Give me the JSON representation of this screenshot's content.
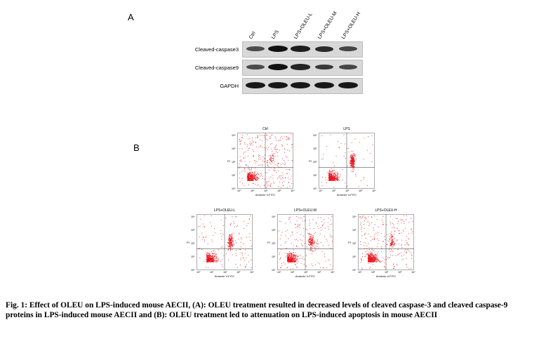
{
  "panel_a": {
    "letter": "A",
    "lanes": [
      "Ctrl",
      "LPS",
      "LPS+OLEU-L",
      "LPS+OLEU-M",
      "LPS+OLEU-H"
    ],
    "rows": [
      {
        "label": "Cleaved-caspase3",
        "band_intensity": [
          0.55,
          1.0,
          0.9,
          0.8,
          0.6
        ]
      },
      {
        "label": "Cleaved-caspase9",
        "band_intensity": [
          0.55,
          1.0,
          0.85,
          0.7,
          0.6
        ]
      },
      {
        "label": "GAPDH",
        "band_intensity": [
          0.95,
          0.95,
          0.95,
          0.95,
          0.95
        ]
      }
    ]
  },
  "panel_b": {
    "letter": "B",
    "x_axis_label": "Annexin V-FITC",
    "y_axis_label": "PI",
    "tick_labels": [
      "10⁰",
      "10¹",
      "10²",
      "10³",
      "10⁴"
    ],
    "plots": [
      {
        "title": "Ctrl",
        "upper_right_fraction": 0.05
      },
      {
        "title": "LPS",
        "upper_right_fraction": 0.35
      },
      {
        "title": "LPS+OLEU-L",
        "upper_right_fraction": 0.25
      },
      {
        "title": "LPS+OLEU-M",
        "upper_right_fraction": 0.17
      },
      {
        "title": "LPS+OLEU-H",
        "upper_right_fraction": 0.12
      }
    ]
  },
  "caption": "Fig. 1: Effect of OLEU on LPS-induced mouse AECII, (A): OLEU treatment resulted in decreased levels of cleaved caspase-3 and cleaved caspase-9 proteins in LPS-induced mouse AECII and (B): OLEU treatment led to attenuation on LPS-induced apoptosis in mouse AECII",
  "colors": {
    "dots": "#e8141c",
    "band": "#111111",
    "blot_bg": "#d8d8d8"
  }
}
